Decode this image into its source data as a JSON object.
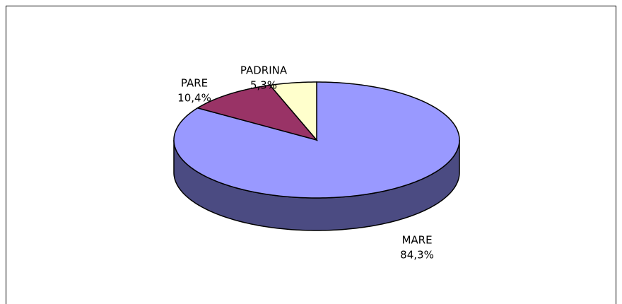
{
  "chart_data": {
    "type": "pie3d",
    "categories": [
      "MARE",
      "PARE",
      "PADRINA"
    ],
    "values": [
      84.3,
      10.4,
      5.3
    ],
    "value_labels": [
      "84,3%",
      "10,4%",
      "5,3%"
    ],
    "colors": [
      "#9999ff",
      "#993366",
      "#ffffcc"
    ],
    "side_colors": [
      "#4b4b82",
      "#5c1f3d",
      "#99997a"
    ]
  }
}
